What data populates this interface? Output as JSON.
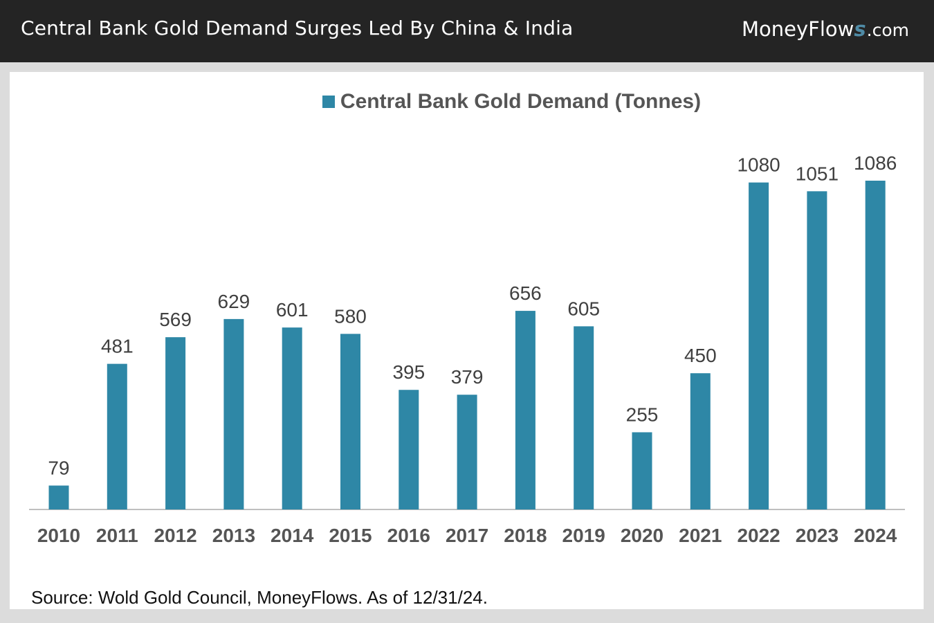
{
  "header": {
    "title": "Central Bank Gold Demand Surges Led By China & India",
    "brand_main": "MoneyFlow",
    "brand_accent": "s",
    "brand_suffix": ".com"
  },
  "colors": {
    "bar": "#2e87a6",
    "header_bg": "#242424",
    "axis": "#bfbfbf"
  },
  "source_note": "Source: Wold Gold Council, MoneyFlows. As of 12/31/24.",
  "chart_data": {
    "type": "bar",
    "title": "",
    "legend": [
      "Central Bank Gold Demand (Tonnes)"
    ],
    "legend_position": "top-center",
    "categories": [
      "2010",
      "2011",
      "2012",
      "2013",
      "2014",
      "2015",
      "2016",
      "2017",
      "2018",
      "2019",
      "2020",
      "2021",
      "2022",
      "2023",
      "2024"
    ],
    "series": [
      {
        "name": "Central Bank Gold Demand (Tonnes)",
        "values": [
          79,
          481,
          569,
          629,
          601,
          580,
          395,
          379,
          656,
          605,
          255,
          450,
          1080,
          1051,
          1086
        ]
      }
    ],
    "xlabel": "",
    "ylabel": "",
    "ylim": [
      0,
      1086
    ],
    "grid": false,
    "data_labels": true
  }
}
